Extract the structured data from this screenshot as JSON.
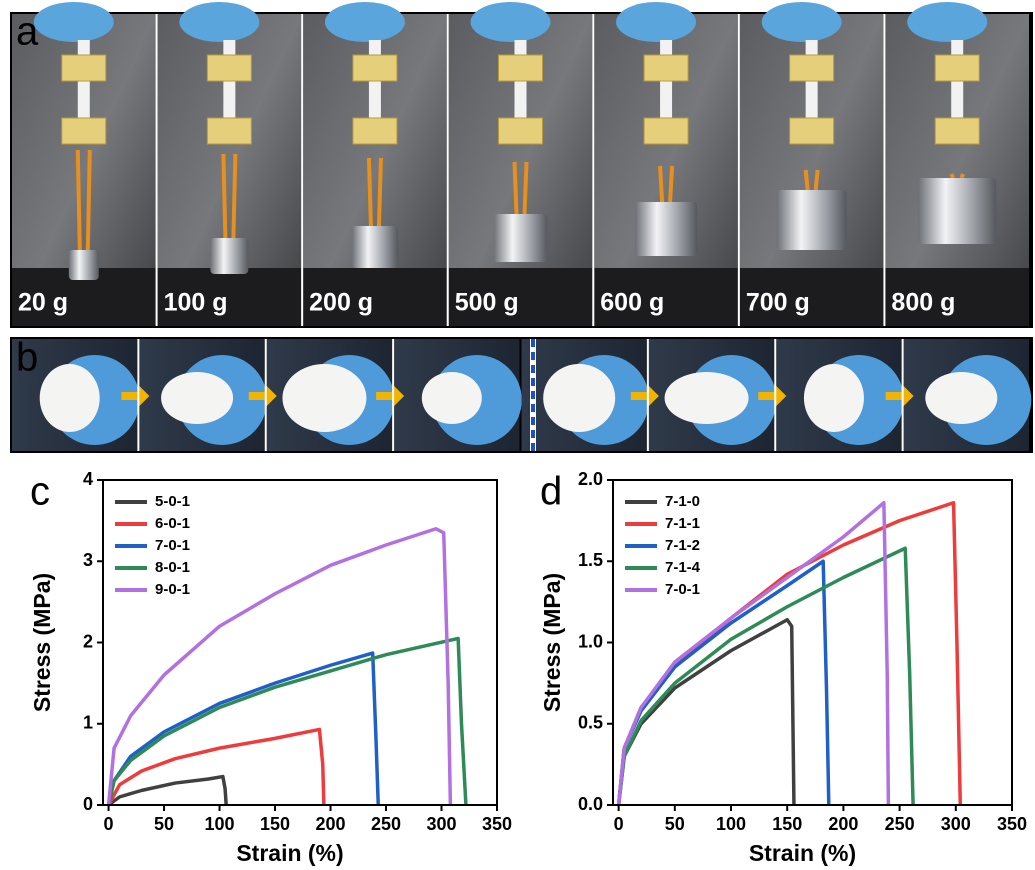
{
  "panel_a": {
    "label": "a",
    "weights": [
      "20 g",
      "100 g",
      "200 g",
      "500 g",
      "600 g",
      "700 g",
      "800 g"
    ]
  },
  "panel_b": {
    "label": "b"
  },
  "chart_data": [
    {
      "type": "line",
      "panel_label": "c",
      "x_label": "Strain (%)",
      "y_label": "Stress (MPa)",
      "xlim": [
        -5,
        350
      ],
      "ylim": [
        0,
        4
      ],
      "xticks": [
        0,
        50,
        100,
        150,
        200,
        250,
        300,
        350
      ],
      "yticks": [
        0,
        1,
        2,
        3,
        4
      ],
      "series": [
        {
          "name": "5-0-1",
          "color": "#404040",
          "x": [
            0,
            10,
            30,
            60,
            90,
            103,
            105,
            106
          ],
          "values": [
            0,
            0.1,
            0.18,
            0.27,
            0.32,
            0.35,
            0.2,
            0
          ]
        },
        {
          "name": "6-0-1",
          "color": "#ee3b3b",
          "x": [
            0,
            10,
            30,
            60,
            100,
            150,
            190,
            193,
            194
          ],
          "values": [
            0,
            0.25,
            0.42,
            0.57,
            0.7,
            0.82,
            0.93,
            0.5,
            0
          ]
        },
        {
          "name": "7-0-1",
          "color": "#1f5fc8",
          "x": [
            0,
            5,
            20,
            50,
            100,
            150,
            200,
            238,
            241,
            243
          ],
          "values": [
            0,
            0.3,
            0.6,
            0.9,
            1.25,
            1.5,
            1.72,
            1.87,
            0.8,
            0
          ]
        },
        {
          "name": "8-0-1",
          "color": "#2e8b57",
          "x": [
            0,
            5,
            20,
            50,
            100,
            150,
            200,
            250,
            315,
            318,
            322
          ],
          "values": [
            0,
            0.3,
            0.55,
            0.85,
            1.2,
            1.45,
            1.65,
            1.85,
            2.05,
            1.0,
            0
          ]
        },
        {
          "name": "9-0-1",
          "color": "#b370e0",
          "x": [
            0,
            5,
            20,
            50,
            100,
            150,
            200,
            250,
            295,
            302,
            306,
            308
          ],
          "values": [
            0,
            0.7,
            1.1,
            1.6,
            2.2,
            2.6,
            2.95,
            3.2,
            3.4,
            3.35,
            1.5,
            0
          ]
        }
      ]
    },
    {
      "type": "line",
      "panel_label": "d",
      "x_label": "Strain (%)",
      "y_label": "Stress (MPa)",
      "xlim": [
        -5,
        350
      ],
      "ylim": [
        0,
        2
      ],
      "xticks": [
        0,
        50,
        100,
        150,
        200,
        250,
        300,
        350
      ],
      "yticks": [
        {
          "value": 0,
          "label": "0.0"
        },
        0.5,
        {
          "value": 1,
          "label": "1.0"
        },
        1.5,
        {
          "value": 2,
          "label": "2.0"
        }
      ],
      "series": [
        {
          "name": "7-1-0",
          "color": "#404040",
          "x": [
            0,
            5,
            20,
            50,
            100,
            150,
            154,
            156
          ],
          "values": [
            0,
            0.3,
            0.5,
            0.72,
            0.95,
            1.14,
            1.1,
            0
          ]
        },
        {
          "name": "7-1-1",
          "color": "#ee3b3b",
          "x": [
            0,
            5,
            20,
            50,
            100,
            150,
            200,
            250,
            298,
            301,
            304
          ],
          "values": [
            0,
            0.35,
            0.6,
            0.85,
            1.15,
            1.42,
            1.6,
            1.75,
            1.86,
            1.0,
            0
          ]
        },
        {
          "name": "7-1-2",
          "color": "#1f5fc8",
          "x": [
            0,
            5,
            20,
            50,
            100,
            150,
            182,
            185,
            187
          ],
          "values": [
            0,
            0.35,
            0.58,
            0.85,
            1.12,
            1.35,
            1.5,
            0.7,
            0
          ]
        },
        {
          "name": "7-1-4",
          "color": "#2e8b57",
          "x": [
            0,
            5,
            20,
            50,
            100,
            150,
            200,
            255,
            259,
            262
          ],
          "values": [
            0,
            0.3,
            0.52,
            0.75,
            1.02,
            1.22,
            1.4,
            1.58,
            0.8,
            0
          ]
        },
        {
          "name": "7-0-1",
          "color": "#b370e0",
          "x": [
            0,
            5,
            20,
            50,
            100,
            150,
            200,
            236,
            239,
            240
          ],
          "values": [
            0,
            0.35,
            0.6,
            0.88,
            1.15,
            1.4,
            1.65,
            1.86,
            0.8,
            0
          ]
        }
      ]
    }
  ]
}
